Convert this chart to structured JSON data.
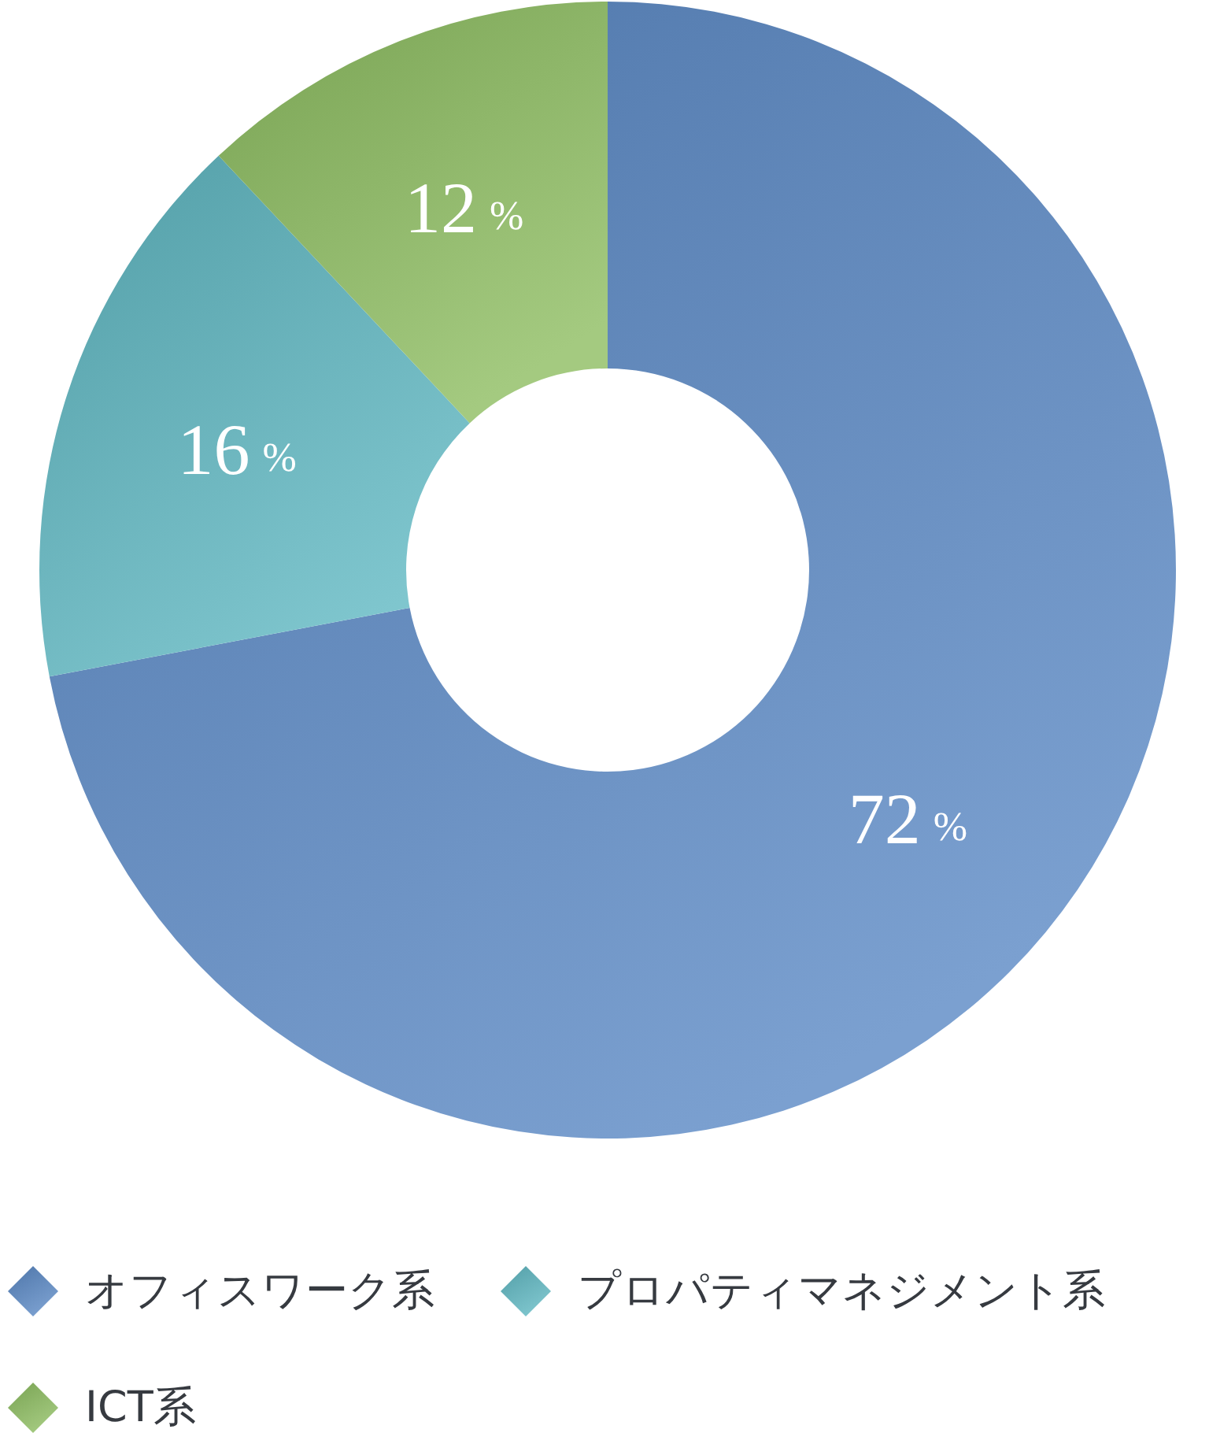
{
  "chart_data": {
    "type": "donut",
    "categories": [
      "オフィスワーク系",
      "プロパティマネジメント系",
      "ICT系"
    ],
    "values": [
      72,
      16,
      12
    ],
    "colors": [
      "#5a88c4",
      "#5fb8c2",
      "#8dbd60"
    ],
    "value_labels": [
      "72%",
      "16%",
      "12%"
    ],
    "legend": "bottom"
  }
}
